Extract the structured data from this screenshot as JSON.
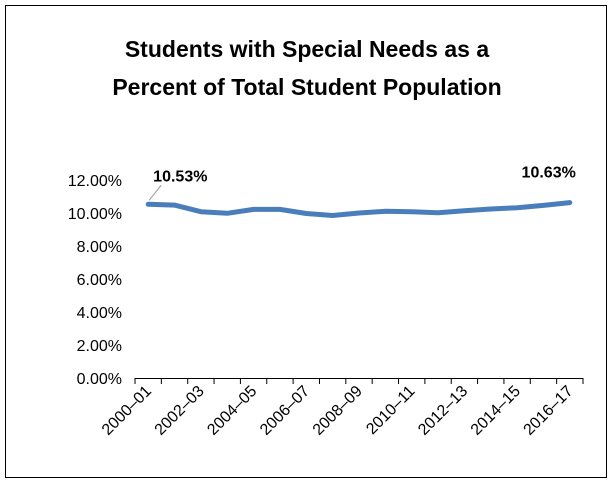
{
  "chart_data": {
    "type": "line",
    "title_lines": [
      "Students with Special Needs as a",
      "Percent of Total Student Population"
    ],
    "xlabel": "",
    "ylabel": "",
    "x": [
      "2000–01",
      "2001–02",
      "2002–03",
      "2003–04",
      "2004–05",
      "2005–06",
      "2006–07",
      "2007–08",
      "2008–09",
      "2009–10",
      "2010–11",
      "2011–12",
      "2012–13",
      "2013–14",
      "2014–15",
      "2015–16",
      "2016–17"
    ],
    "x_tick_labels": [
      "2000–01",
      "2002–03",
      "2004–05",
      "2006–07",
      "2008–09",
      "2010–11",
      "2012–13",
      "2014–15",
      "2016–17"
    ],
    "series": [
      {
        "values": [
          10.53,
          10.48,
          10.08,
          9.98,
          10.22,
          10.22,
          9.97,
          9.85,
          10.0,
          10.1,
          10.08,
          10.02,
          10.14,
          10.24,
          10.32,
          10.46,
          10.63
        ],
        "color": "#4A7EBB"
      }
    ],
    "y_ticks": [
      "0.00%",
      "2.00%",
      "4.00%",
      "6.00%",
      "8.00%",
      "10.00%",
      "12.00%"
    ],
    "ylim": [
      0,
      12
    ],
    "data_labels": [
      {
        "index": 0,
        "text": "10.53%"
      },
      {
        "index": 16,
        "text": "10.63%"
      }
    ],
    "grid": false,
    "legend": "none"
  }
}
